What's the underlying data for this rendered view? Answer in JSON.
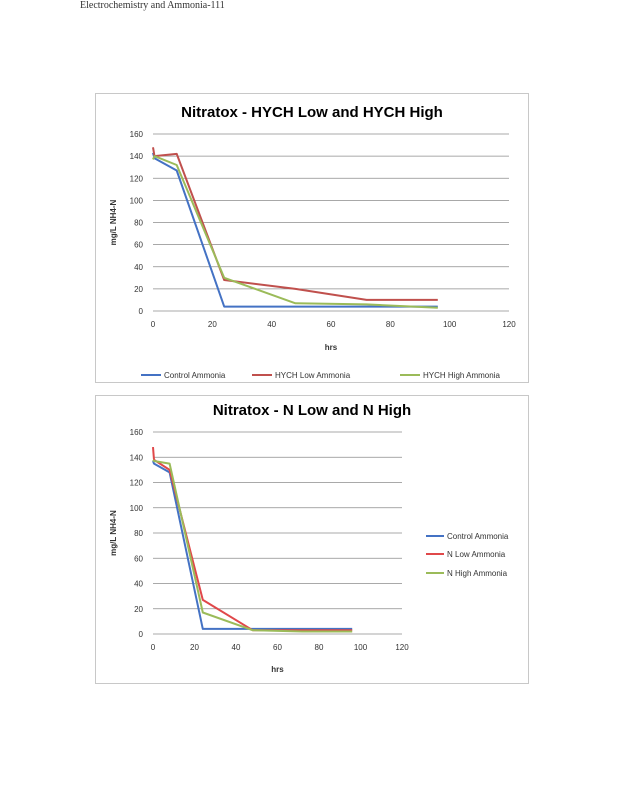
{
  "header": {
    "text": "Electrochemistry and Ammonia-111"
  },
  "chart_data": [
    {
      "type": "line",
      "title": "Nitratox - HYCH Low and HYCH High",
      "xlabel": "hrs",
      "ylabel": "mg/L NH4-N",
      "xlim": [
        0,
        120
      ],
      "ylim": [
        0,
        160
      ],
      "xticks": [
        0,
        20,
        40,
        60,
        80,
        100,
        120
      ],
      "yticks": [
        0,
        20,
        40,
        60,
        80,
        100,
        120,
        140,
        160
      ],
      "legend_position": "bottom",
      "series": [
        {
          "name": "Control Ammonia",
          "color": "#4472c4",
          "x": [
            0,
            0.5,
            8,
            24,
            48,
            72,
            96
          ],
          "y": [
            143,
            138,
            127,
            4,
            4,
            4,
            4
          ]
        },
        {
          "name": "HYCH Low Ammonia",
          "color": "#c0504d",
          "x": [
            0,
            0.5,
            8,
            24,
            48,
            72,
            96
          ],
          "y": [
            148,
            140,
            142,
            28,
            20,
            10,
            10
          ]
        },
        {
          "name": "HYCH High Ammonia",
          "color": "#9bbb59",
          "x": [
            0,
            0.5,
            8,
            24,
            48,
            72,
            96
          ],
          "y": [
            137,
            140,
            132,
            30,
            7,
            6,
            3
          ]
        }
      ]
    },
    {
      "type": "line",
      "title": "Nitratox - N Low and N High",
      "xlabel": "hrs",
      "ylabel": "mg/L NH4-N",
      "xlim": [
        0,
        120
      ],
      "ylim": [
        0,
        160
      ],
      "xticks": [
        0,
        20,
        40,
        60,
        80,
        100,
        120
      ],
      "yticks": [
        0,
        20,
        40,
        60,
        80,
        100,
        120,
        140,
        160
      ],
      "legend_position": "right",
      "series": [
        {
          "name": "Control Ammonia",
          "color": "#4472c4",
          "x": [
            0,
            0.5,
            8,
            24,
            48,
            72,
            96
          ],
          "y": [
            137,
            135,
            128,
            4,
            4,
            4,
            4
          ]
        },
        {
          "name": "N Low Ammonia",
          "color": "#e0484a",
          "x": [
            0,
            0.5,
            8,
            24,
            48,
            72,
            96
          ],
          "y": [
            148,
            138,
            130,
            27,
            3,
            3,
            3
          ]
        },
        {
          "name": "N High Ammonia",
          "color": "#9bbb59",
          "x": [
            0,
            0.5,
            8,
            24,
            48,
            72,
            96
          ],
          "y": [
            138,
            137,
            135,
            17,
            3,
            2,
            2
          ]
        }
      ]
    }
  ]
}
